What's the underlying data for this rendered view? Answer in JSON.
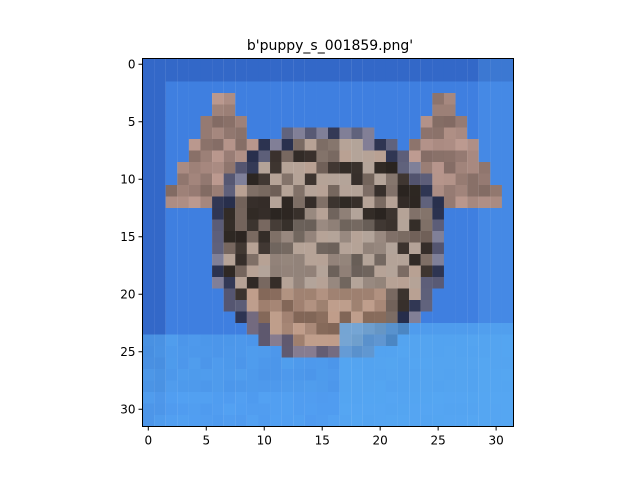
{
  "title": "b'puppy_s_001859.png'",
  "image_shape": [
    32,
    32
  ],
  "x_ticks": [
    0,
    5,
    10,
    15,
    20,
    25,
    30
  ],
  "y_ticks": [
    0,
    5,
    10,
    15,
    20,
    25,
    30
  ],
  "palette": {
    "background_blue": "#3f7fe0",
    "deep_blue": "#1d3e9a",
    "light_blue": "#56a8f2",
    "dark_fur": "#2a2420",
    "mid_fur": "#6e5e56",
    "light_fur": "#b3a49a",
    "tan_fur": "#c79a82",
    "pink_ear": "#d8b0a5"
  }
}
